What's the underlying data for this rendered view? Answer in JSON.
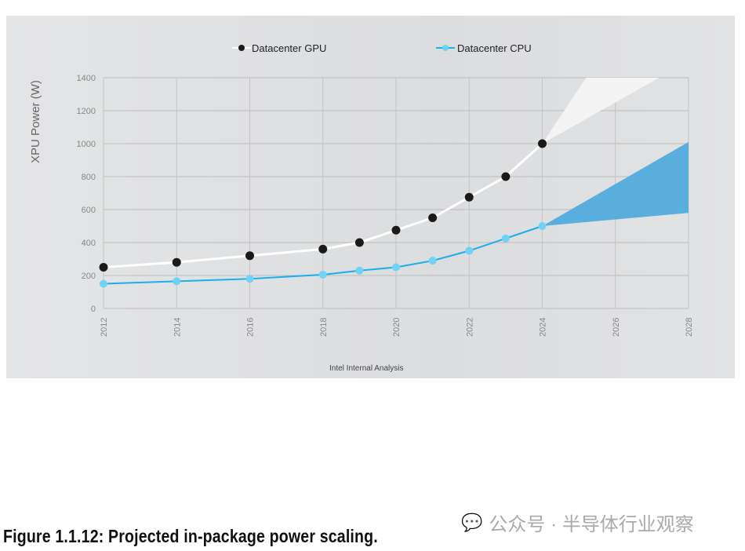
{
  "chart_data": {
    "type": "line",
    "ylabel": "XPU Power (W)",
    "xlim": [
      2012,
      2028
    ],
    "ylim": [
      0,
      1400
    ],
    "xticks": [
      "2012",
      "2014",
      "2016",
      "2018",
      "2020",
      "2022",
      "2024",
      "2026",
      "2028"
    ],
    "yticks": [
      "0",
      "200",
      "400",
      "600",
      "800",
      "1000",
      "1200",
      "1400"
    ],
    "legend_position": "top",
    "series": [
      {
        "name": "Datacenter GPU",
        "color": "#1a1a1a",
        "line_color": "#ffffff",
        "x": [
          2012,
          2014,
          2016,
          2018,
          2019,
          2020,
          2021,
          2022,
          2023,
          2024
        ],
        "y": [
          250,
          280,
          320,
          360,
          400,
          475,
          550,
          675,
          800,
          1000
        ],
        "projection": {
          "x_start": 2024,
          "y_start": 1000,
          "upper": [
            [
              2025.2,
              1400
            ]
          ],
          "lower": [
            [
              2027.2,
              1400
            ]
          ],
          "color": "#f4f4f4"
        }
      },
      {
        "name": "Datacenter CPU",
        "color": "#6fd3f5",
        "line_color": "#1ab0e8",
        "x": [
          2012,
          2014,
          2016,
          2018,
          2019,
          2020,
          2021,
          2022,
          2023,
          2024
        ],
        "y": [
          150,
          165,
          180,
          205,
          230,
          250,
          290,
          350,
          425,
          500
        ],
        "projection": {
          "x_start": 2024,
          "y_start": 500,
          "upper": [
            [
              2028,
              1010
            ]
          ],
          "lower": [
            [
              2028,
              580
            ]
          ],
          "color": "#5aaedd"
        }
      }
    ],
    "source": "Intel Internal Analysis"
  },
  "caption": "Figure 1.1.12: Projected in-package power scaling.",
  "watermark": "公众号 · 半导体行业观察"
}
